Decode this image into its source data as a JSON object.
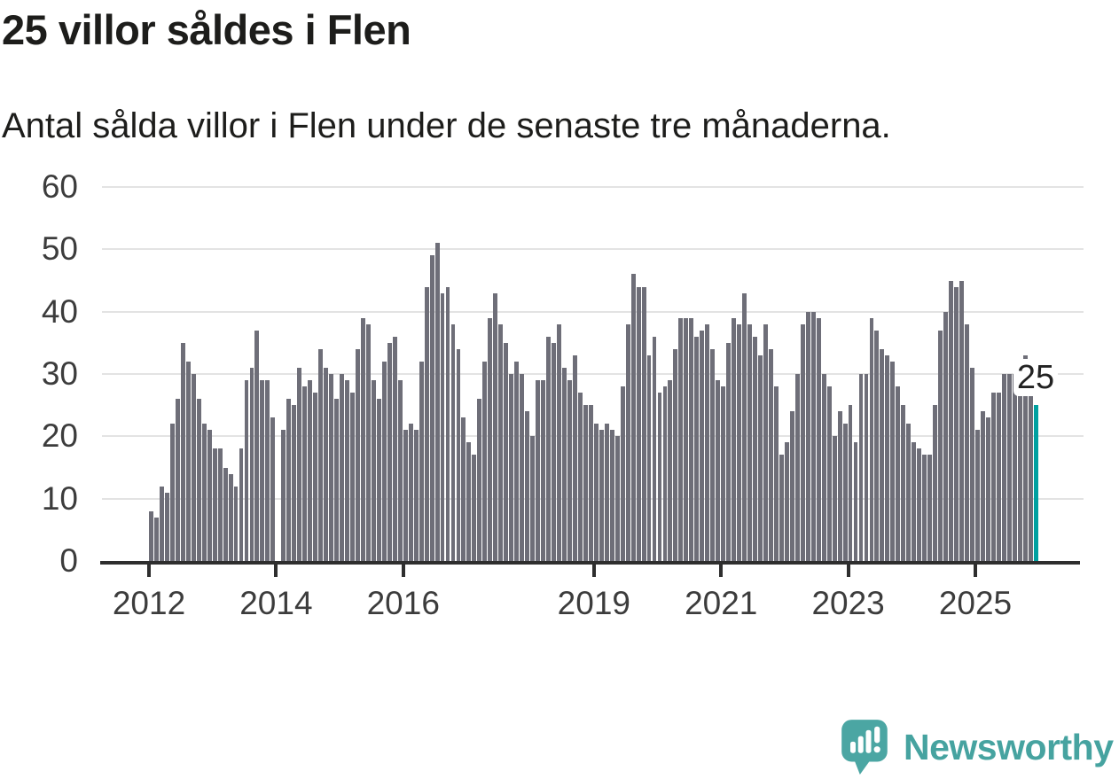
{
  "header": {
    "title": "25 villor såldes i Flen",
    "subtitle": "Antal sålda villor i Flen under de senaste tre månaderna."
  },
  "annotation": {
    "label": "25"
  },
  "branding": {
    "logo_text": "Newsworthy",
    "logo_color": "#46a3a0"
  },
  "colors": {
    "bar": "#6e6e78",
    "highlight": "#00a0a0",
    "axis": "#2e2e2e",
    "grid": "#e3e3e3",
    "tick_label": "#3c3c3c",
    "text": "#1d1d1b"
  },
  "chart_data": {
    "type": "bar",
    "title": "25 villor såldes i Flen",
    "subtitle": "Antal sålda villor i Flen under de senaste tre månaderna.",
    "xlabel": "",
    "ylabel": "",
    "ylim": [
      0,
      60
    ],
    "yticks": [
      0,
      10,
      20,
      30,
      40,
      50,
      60
    ],
    "grid": "horizontal",
    "legend": "none",
    "x_start": "2012-01",
    "frequency": "monthly",
    "x_tick_labels": [
      "2012",
      "2014",
      "2016",
      "2019",
      "2021",
      "2023",
      "2025"
    ],
    "x_tick_indices": [
      0,
      24,
      48,
      84,
      108,
      132,
      156
    ],
    "highlight_index": 167,
    "highlight_value": 25,
    "values": [
      8,
      7,
      12,
      11,
      22,
      26,
      35,
      32,
      30,
      26,
      22,
      21,
      18,
      18,
      15,
      14,
      12,
      18,
      29,
      31,
      37,
      29,
      29,
      23,
      null,
      21,
      26,
      25,
      31,
      28,
      29,
      27,
      34,
      31,
      30,
      26,
      30,
      29,
      27,
      34,
      39,
      38,
      29,
      26,
      32,
      35,
      36,
      29,
      21,
      22,
      21,
      32,
      44,
      49,
      51,
      43,
      44,
      38,
      34,
      23,
      19,
      17,
      26,
      32,
      39,
      43,
      38,
      35,
      30,
      32,
      30,
      24,
      20,
      29,
      29,
      36,
      35,
      38,
      31,
      29,
      33,
      27,
      25,
      25,
      22,
      21,
      22,
      21,
      20,
      28,
      38,
      46,
      44,
      44,
      33,
      36,
      27,
      28,
      29,
      34,
      39,
      39,
      39,
      36,
      37,
      38,
      34,
      29,
      28,
      35,
      39,
      38,
      43,
      38,
      36,
      33,
      38,
      34,
      28,
      17,
      19,
      24,
      30,
      38,
      40,
      40,
      39,
      30,
      28,
      20,
      24,
      22,
      25,
      19,
      30,
      30,
      39,
      37,
      34,
      33,
      32,
      28,
      25,
      22,
      19,
      18,
      17,
      17,
      25,
      37,
      40,
      45,
      44,
      45,
      38,
      31,
      21,
      24,
      23,
      27,
      27,
      30,
      30,
      30,
      27,
      33,
      27,
      25
    ]
  }
}
